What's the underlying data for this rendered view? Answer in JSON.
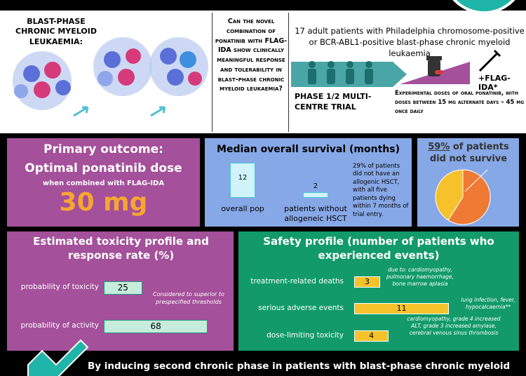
{
  "header": {
    "title": "Blast-phase chronic myeloid leukaemia:"
  },
  "question": "Can the novel combination of ponatinib with FLAG-IDA show clinically meaningful response and tolerability in blast-phase chronic myeloid leukaemia?",
  "design": {
    "patients": "17 adult patients with Philadelphia chromosome-positive or BCR-ABL1-positive blast-phase chronic myeloid leukaemia",
    "trial": "Phase 1/2 multi-centre trial",
    "regimen": "+FLAG-IDA*",
    "doses": "Experimental doses of oral ponatinib, with doses between 15 mg alternate days – 45 mg once daily"
  },
  "primary": {
    "title": "Primary outcome:",
    "subtitle": "Optimal ponatinib dose",
    "note": "when combined with FLAG-IDA",
    "dose": "30 mg"
  },
  "survival": {
    "title": "Median overall survival (months)",
    "categories": [
      "overall pop",
      "patients without allogeneic HSCT"
    ],
    "values": [
      12,
      2
    ],
    "note": "29% of patients did not have an allogenic HSCT, with all five patients dying within 7 months of trial entry."
  },
  "mortality": {
    "value": 59,
    "label": "59%",
    "text": "of patients did not survive"
  },
  "toxicity": {
    "title": "Estimated toxicity profile and response rate (%)",
    "categories": [
      "probability of toxicity",
      "probability of activity"
    ],
    "values": [
      25,
      68
    ],
    "note": "Considered to superior to prespecified thresholds"
  },
  "safety": {
    "title": "Safety profile (number of patients who experienced events)",
    "categories": [
      "treatment-related deaths",
      "serious adverse events",
      "dose-limiting toxicity"
    ],
    "values": [
      3,
      11,
      4
    ],
    "notes": [
      "due to: cardiomyopathy, pulmonary haemorrhage, bone marrow aplasia",
      "lung infection, fever, hypocalcaemia**",
      "cardiomyopathy, grade 4 increased ALT, grade 3 increased amylase, cerebral venous sinus thrombosis"
    ]
  },
  "footer": {
    "text": "By inducing second chronic phase in patients with blast-phase chronic myeloid"
  }
}
